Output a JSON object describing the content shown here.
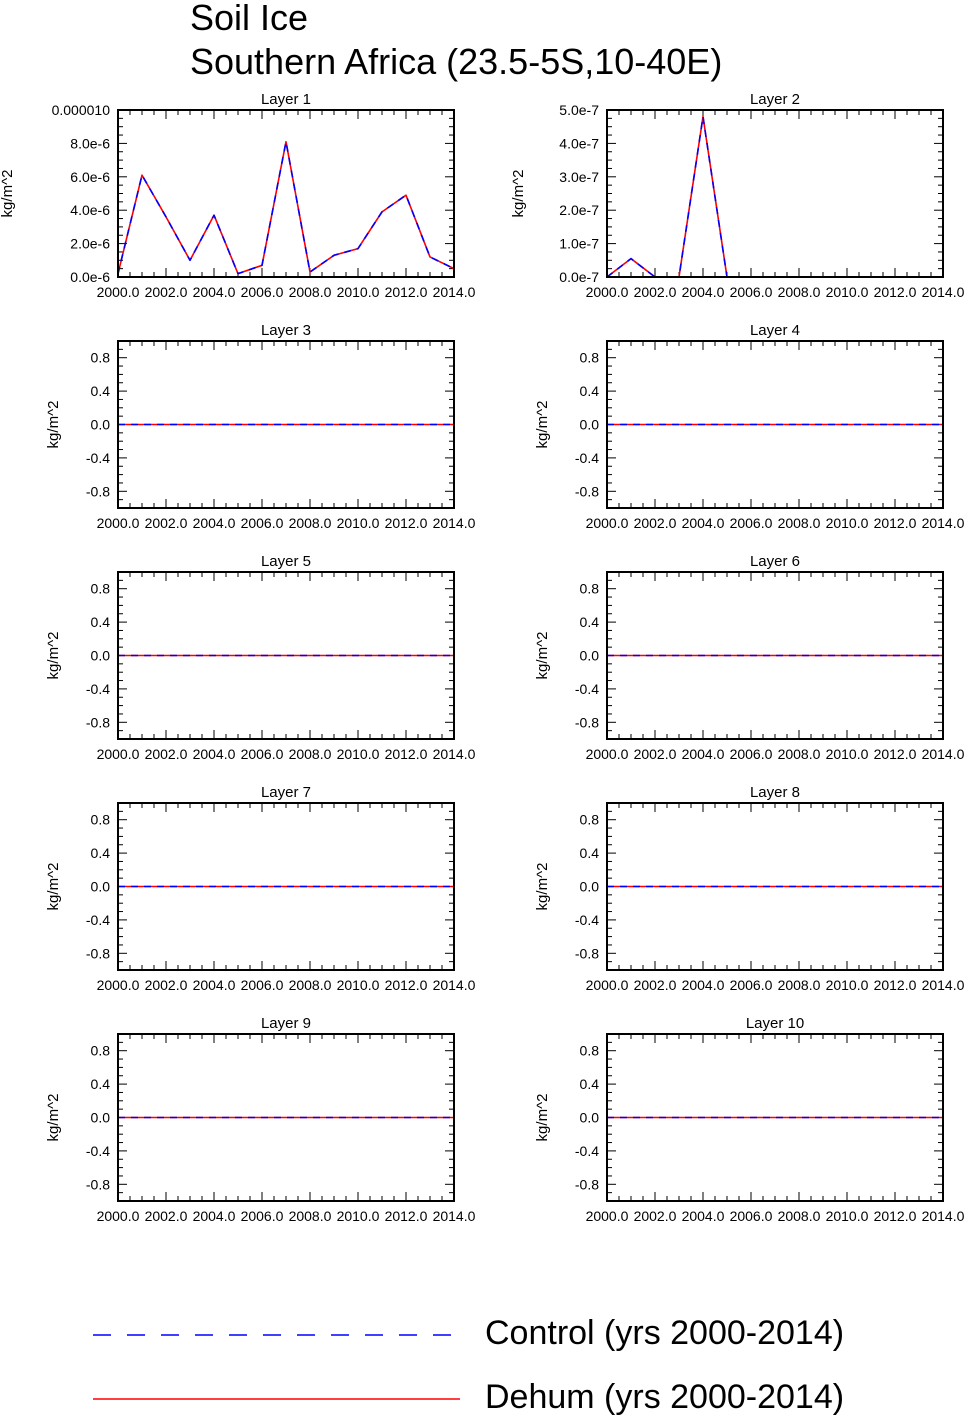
{
  "header": {
    "title_line1": "Soil Ice",
    "title_line2": "Southern Africa (23.5-5S,10-40E)"
  },
  "colors": {
    "control": "#0000ff",
    "dehum": "#ff0000",
    "axis": "#000000"
  },
  "legend": {
    "control_label": "Control (yrs 2000-2014)",
    "dehum_label": "Dehum (yrs 2000-2014)"
  },
  "chart_data": [
    {
      "type": "line",
      "title": "Layer 1",
      "ylabel": "kg/m^2",
      "xlim": [
        2000,
        2014
      ],
      "ylim": [
        0,
        1e-05
      ],
      "xticks": [
        2000,
        2002,
        2004,
        2006,
        2008,
        2010,
        2012,
        2014
      ],
      "xtick_labels": [
        "2000.0",
        "2002.0",
        "2004.0",
        "2006.0",
        "2008.0",
        "2010.0",
        "2012.0",
        "2014.0"
      ],
      "yticks": [
        0,
        2e-06,
        4e-06,
        6e-06,
        8e-06,
        1e-05
      ],
      "ytick_labels": [
        "0.0e-6",
        "2.0e-6",
        "4.0e-6",
        "6.0e-6",
        "8.0e-6",
        "0.000010"
      ],
      "x": [
        2000,
        2001,
        2002,
        2003,
        2004,
        2005,
        2006,
        2007,
        2008,
        2009,
        2010,
        2011,
        2012,
        2013,
        2014
      ],
      "series": [
        {
          "name": "Control (yrs 2000-2014)",
          "values": [
            2e-07,
            6.1e-06,
            3.6e-06,
            1e-06,
            3.7e-06,
            2e-07,
            7e-07,
            8.1e-06,
            3e-07,
            1.3e-06,
            1.7e-06,
            3.9e-06,
            4.9e-06,
            1.2e-06,
            5e-07
          ]
        },
        {
          "name": "Dehum (yrs 2000-2014)",
          "values": [
            2e-07,
            6.1e-06,
            3.6e-06,
            1e-06,
            3.7e-06,
            2e-07,
            7e-07,
            8.1e-06,
            3e-07,
            1.3e-06,
            1.7e-06,
            3.9e-06,
            4.9e-06,
            1.2e-06,
            5e-07
          ]
        }
      ]
    },
    {
      "type": "line",
      "title": "Layer 2",
      "ylabel": "kg/m^2",
      "xlim": [
        2000,
        2014
      ],
      "ylim": [
        0,
        5e-07
      ],
      "xticks": [
        2000,
        2002,
        2004,
        2006,
        2008,
        2010,
        2012,
        2014
      ],
      "xtick_labels": [
        "2000.0",
        "2002.0",
        "2004.0",
        "2006.0",
        "2008.0",
        "2010.0",
        "2012.0",
        "2014.0"
      ],
      "yticks": [
        0,
        1e-07,
        2e-07,
        3e-07,
        4e-07,
        5e-07
      ],
      "ytick_labels": [
        "0.0e-7",
        "1.0e-7",
        "2.0e-7",
        "3.0e-7",
        "4.0e-7",
        "5.0e-7"
      ],
      "x": [
        2000,
        2001,
        2002,
        2003,
        2004,
        2005,
        2006,
        2007,
        2008,
        2009,
        2010,
        2011,
        2012,
        2013,
        2014
      ],
      "series": [
        {
          "name": "Control (yrs 2000-2014)",
          "values": [
            0,
            5.5e-08,
            0,
            0,
            4.8e-07,
            0,
            0,
            0,
            0,
            0,
            0,
            0,
            0,
            0,
            0
          ]
        },
        {
          "name": "Dehum (yrs 2000-2014)",
          "values": [
            0,
            5.5e-08,
            0,
            0,
            4.8e-07,
            0,
            0,
            0,
            0,
            0,
            0,
            0,
            0,
            0,
            0
          ]
        }
      ]
    },
    {
      "type": "line",
      "title": "Layer 3",
      "ylabel": "kg/m^2",
      "xlim": [
        2000,
        2014
      ],
      "ylim": [
        -1,
        1
      ],
      "xticks": [
        2000,
        2002,
        2004,
        2006,
        2008,
        2010,
        2012,
        2014
      ],
      "xtick_labels": [
        "2000.0",
        "2002.0",
        "2004.0",
        "2006.0",
        "2008.0",
        "2010.0",
        "2012.0",
        "2014.0"
      ],
      "yticks": [
        -0.8,
        -0.4,
        0,
        0.4,
        0.8
      ],
      "ytick_labels": [
        "-0.8",
        "-0.4",
        "0.0",
        "0.4",
        "0.8"
      ],
      "x": [
        2000,
        2001,
        2002,
        2003,
        2004,
        2005,
        2006,
        2007,
        2008,
        2009,
        2010,
        2011,
        2012,
        2013,
        2014
      ],
      "series": [
        {
          "name": "Control (yrs 2000-2014)",
          "values": [
            0,
            0,
            0,
            0,
            0,
            0,
            0,
            0,
            0,
            0,
            0,
            0,
            0,
            0,
            0
          ]
        },
        {
          "name": "Dehum (yrs 2000-2014)",
          "values": [
            0,
            0,
            0,
            0,
            0,
            0,
            0,
            0,
            0,
            0,
            0,
            0,
            0,
            0,
            0
          ]
        }
      ]
    },
    {
      "type": "line",
      "title": "Layer 4",
      "ylabel": "kg/m^2",
      "xlim": [
        2000,
        2014
      ],
      "ylim": [
        -1,
        1
      ],
      "xticks": [
        2000,
        2002,
        2004,
        2006,
        2008,
        2010,
        2012,
        2014
      ],
      "xtick_labels": [
        "2000.0",
        "2002.0",
        "2004.0",
        "2006.0",
        "2008.0",
        "2010.0",
        "2012.0",
        "2014.0"
      ],
      "yticks": [
        -0.8,
        -0.4,
        0,
        0.4,
        0.8
      ],
      "ytick_labels": [
        "-0.8",
        "-0.4",
        "0.0",
        "0.4",
        "0.8"
      ],
      "x": [
        2000,
        2001,
        2002,
        2003,
        2004,
        2005,
        2006,
        2007,
        2008,
        2009,
        2010,
        2011,
        2012,
        2013,
        2014
      ],
      "series": [
        {
          "name": "Control (yrs 2000-2014)",
          "values": [
            0,
            0,
            0,
            0,
            0,
            0,
            0,
            0,
            0,
            0,
            0,
            0,
            0,
            0,
            0
          ]
        },
        {
          "name": "Dehum (yrs 2000-2014)",
          "values": [
            0,
            0,
            0,
            0,
            0,
            0,
            0,
            0,
            0,
            0,
            0,
            0,
            0,
            0,
            0
          ]
        }
      ]
    },
    {
      "type": "line",
      "title": "Layer 5",
      "ylabel": "kg/m^2",
      "xlim": [
        2000,
        2014
      ],
      "ylim": [
        -1,
        1
      ],
      "xticks": [
        2000,
        2002,
        2004,
        2006,
        2008,
        2010,
        2012,
        2014
      ],
      "xtick_labels": [
        "2000.0",
        "2002.0",
        "2004.0",
        "2006.0",
        "2008.0",
        "2010.0",
        "2012.0",
        "2014.0"
      ],
      "yticks": [
        -0.8,
        -0.4,
        0,
        0.4,
        0.8
      ],
      "ytick_labels": [
        "-0.8",
        "-0.4",
        "0.0",
        "0.4",
        "0.8"
      ],
      "x": [
        2000,
        2001,
        2002,
        2003,
        2004,
        2005,
        2006,
        2007,
        2008,
        2009,
        2010,
        2011,
        2012,
        2013,
        2014
      ],
      "series": [
        {
          "name": "Control (yrs 2000-2014)",
          "values": [
            0,
            0,
            0,
            0,
            0,
            0,
            0,
            0,
            0,
            0,
            0,
            0,
            0,
            0,
            0
          ]
        },
        {
          "name": "Dehum (yrs 2000-2014)",
          "values": [
            0,
            0,
            0,
            0,
            0,
            0,
            0,
            0,
            0,
            0,
            0,
            0,
            0,
            0,
            0
          ]
        }
      ]
    },
    {
      "type": "line",
      "title": "Layer 6",
      "ylabel": "kg/m^2",
      "xlim": [
        2000,
        2014
      ],
      "ylim": [
        -1,
        1
      ],
      "xticks": [
        2000,
        2002,
        2004,
        2006,
        2008,
        2010,
        2012,
        2014
      ],
      "xtick_labels": [
        "2000.0",
        "2002.0",
        "2004.0",
        "2006.0",
        "2008.0",
        "2010.0",
        "2012.0",
        "2014.0"
      ],
      "yticks": [
        -0.8,
        -0.4,
        0,
        0.4,
        0.8
      ],
      "ytick_labels": [
        "-0.8",
        "-0.4",
        "0.0",
        "0.4",
        "0.8"
      ],
      "x": [
        2000,
        2001,
        2002,
        2003,
        2004,
        2005,
        2006,
        2007,
        2008,
        2009,
        2010,
        2011,
        2012,
        2013,
        2014
      ],
      "series": [
        {
          "name": "Control (yrs 2000-2014)",
          "values": [
            0,
            0,
            0,
            0,
            0,
            0,
            0,
            0,
            0,
            0,
            0,
            0,
            0,
            0,
            0
          ]
        },
        {
          "name": "Dehum (yrs 2000-2014)",
          "values": [
            0,
            0,
            0,
            0,
            0,
            0,
            0,
            0,
            0,
            0,
            0,
            0,
            0,
            0,
            0
          ]
        }
      ]
    },
    {
      "type": "line",
      "title": "Layer 7",
      "ylabel": "kg/m^2",
      "xlim": [
        2000,
        2014
      ],
      "ylim": [
        -1,
        1
      ],
      "xticks": [
        2000,
        2002,
        2004,
        2006,
        2008,
        2010,
        2012,
        2014
      ],
      "xtick_labels": [
        "2000.0",
        "2002.0",
        "2004.0",
        "2006.0",
        "2008.0",
        "2010.0",
        "2012.0",
        "2014.0"
      ],
      "yticks": [
        -0.8,
        -0.4,
        0,
        0.4,
        0.8
      ],
      "ytick_labels": [
        "-0.8",
        "-0.4",
        "0.0",
        "0.4",
        "0.8"
      ],
      "x": [
        2000,
        2001,
        2002,
        2003,
        2004,
        2005,
        2006,
        2007,
        2008,
        2009,
        2010,
        2011,
        2012,
        2013,
        2014
      ],
      "series": [
        {
          "name": "Control (yrs 2000-2014)",
          "values": [
            0,
            0,
            0,
            0,
            0,
            0,
            0,
            0,
            0,
            0,
            0,
            0,
            0,
            0,
            0
          ]
        },
        {
          "name": "Dehum (yrs 2000-2014)",
          "values": [
            0,
            0,
            0,
            0,
            0,
            0,
            0,
            0,
            0,
            0,
            0,
            0,
            0,
            0,
            0
          ]
        }
      ]
    },
    {
      "type": "line",
      "title": "Layer 8",
      "ylabel": "kg/m^2",
      "xlim": [
        2000,
        2014
      ],
      "ylim": [
        -1,
        1
      ],
      "xticks": [
        2000,
        2002,
        2004,
        2006,
        2008,
        2010,
        2012,
        2014
      ],
      "xtick_labels": [
        "2000.0",
        "2002.0",
        "2004.0",
        "2006.0",
        "2008.0",
        "2010.0",
        "2012.0",
        "2014.0"
      ],
      "yticks": [
        -0.8,
        -0.4,
        0,
        0.4,
        0.8
      ],
      "ytick_labels": [
        "-0.8",
        "-0.4",
        "0.0",
        "0.4",
        "0.8"
      ],
      "x": [
        2000,
        2001,
        2002,
        2003,
        2004,
        2005,
        2006,
        2007,
        2008,
        2009,
        2010,
        2011,
        2012,
        2013,
        2014
      ],
      "series": [
        {
          "name": "Control (yrs 2000-2014)",
          "values": [
            0,
            0,
            0,
            0,
            0,
            0,
            0,
            0,
            0,
            0,
            0,
            0,
            0,
            0,
            0
          ]
        },
        {
          "name": "Dehum (yrs 2000-2014)",
          "values": [
            0,
            0,
            0,
            0,
            0,
            0,
            0,
            0,
            0,
            0,
            0,
            0,
            0,
            0,
            0
          ]
        }
      ]
    },
    {
      "type": "line",
      "title": "Layer 9",
      "ylabel": "kg/m^2",
      "xlim": [
        2000,
        2014
      ],
      "ylim": [
        -1,
        1
      ],
      "xticks": [
        2000,
        2002,
        2004,
        2006,
        2008,
        2010,
        2012,
        2014
      ],
      "xtick_labels": [
        "2000.0",
        "2002.0",
        "2004.0",
        "2006.0",
        "2008.0",
        "2010.0",
        "2012.0",
        "2014.0"
      ],
      "yticks": [
        -0.8,
        -0.4,
        0,
        0.4,
        0.8
      ],
      "ytick_labels": [
        "-0.8",
        "-0.4",
        "0.0",
        "0.4",
        "0.8"
      ],
      "x": [
        2000,
        2001,
        2002,
        2003,
        2004,
        2005,
        2006,
        2007,
        2008,
        2009,
        2010,
        2011,
        2012,
        2013,
        2014
      ],
      "series": [
        {
          "name": "Control (yrs 2000-2014)",
          "values": [
            0,
            0,
            0,
            0,
            0,
            0,
            0,
            0,
            0,
            0,
            0,
            0,
            0,
            0,
            0
          ]
        },
        {
          "name": "Dehum (yrs 2000-2014)",
          "values": [
            0,
            0,
            0,
            0,
            0,
            0,
            0,
            0,
            0,
            0,
            0,
            0,
            0,
            0,
            0
          ]
        }
      ]
    },
    {
      "type": "line",
      "title": "Layer 10",
      "ylabel": "kg/m^2",
      "xlim": [
        2000,
        2014
      ],
      "ylim": [
        -1,
        1
      ],
      "xticks": [
        2000,
        2002,
        2004,
        2006,
        2008,
        2010,
        2012,
        2014
      ],
      "xtick_labels": [
        "2000.0",
        "2002.0",
        "2004.0",
        "2006.0",
        "2008.0",
        "2010.0",
        "2012.0",
        "2014.0"
      ],
      "yticks": [
        -0.8,
        -0.4,
        0,
        0.4,
        0.8
      ],
      "ytick_labels": [
        "-0.8",
        "-0.4",
        "0.0",
        "0.4",
        "0.8"
      ],
      "x": [
        2000,
        2001,
        2002,
        2003,
        2004,
        2005,
        2006,
        2007,
        2008,
        2009,
        2010,
        2011,
        2012,
        2013,
        2014
      ],
      "series": [
        {
          "name": "Control (yrs 2000-2014)",
          "values": [
            0,
            0,
            0,
            0,
            0,
            0,
            0,
            0,
            0,
            0,
            0,
            0,
            0,
            0,
            0
          ]
        },
        {
          "name": "Dehum (yrs 2000-2014)",
          "values": [
            0,
            0,
            0,
            0,
            0,
            0,
            0,
            0,
            0,
            0,
            0,
            0,
            0,
            0,
            0
          ]
        }
      ]
    }
  ]
}
